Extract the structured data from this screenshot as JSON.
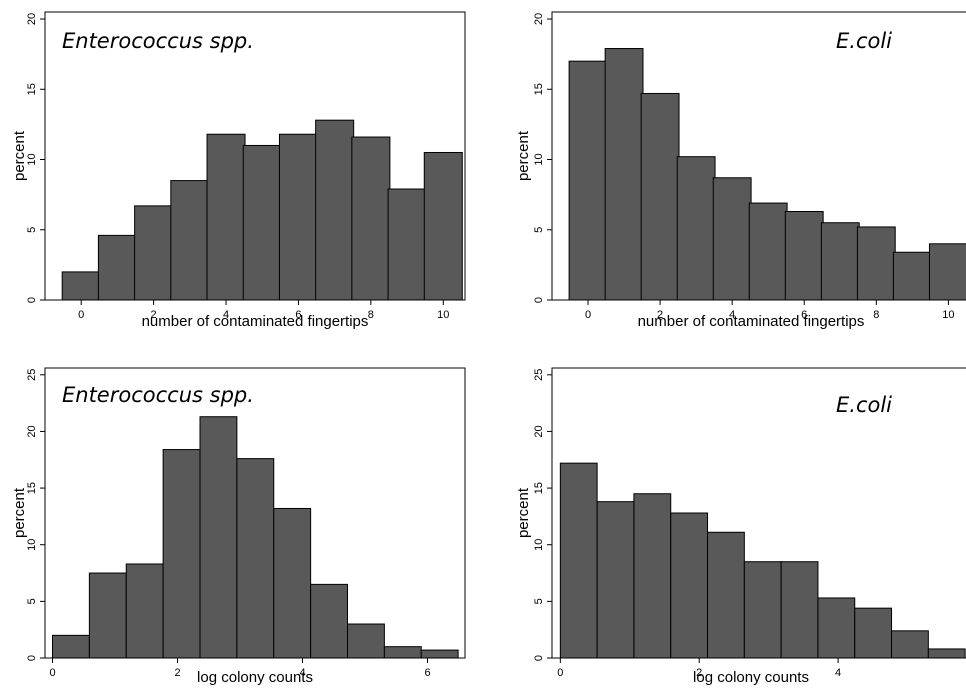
{
  "figure": {
    "colors": {
      "bar_fill": "#595959",
      "bar_edge": "#000000",
      "background": "#ffffff"
    }
  },
  "chart_data": [
    {
      "id": "entero-fingertips",
      "type": "bar",
      "annotation": "Enterococcus spp.",
      "xlabel": "number of contaminated fingertips",
      "ylabel": "percent",
      "x_ticks": [
        0,
        2,
        4,
        6,
        8,
        10
      ],
      "y_ticks": [
        0,
        5,
        10,
        15,
        20
      ],
      "xlim": [
        -1.0,
        10.6
      ],
      "ylim": [
        0,
        20.5
      ],
      "bin_width": 1.05,
      "bins_x": [
        0,
        1,
        2,
        3,
        4,
        5,
        6,
        7,
        8,
        9,
        10
      ],
      "values": [
        2.0,
        4.6,
        6.7,
        8.5,
        11.8,
        11.0,
        11.8,
        12.8,
        11.6,
        7.9,
        10.5
      ],
      "grid": false
    },
    {
      "id": "ecoli-fingertips",
      "type": "bar",
      "annotation": "E.coli",
      "xlabel": "number of contaminated fingertips",
      "ylabel": "percent",
      "x_ticks": [
        0,
        2,
        4,
        6,
        8,
        10
      ],
      "y_ticks": [
        0,
        5,
        10,
        15,
        20
      ],
      "xlim": [
        -1.0,
        10.6
      ],
      "ylim": [
        0,
        20.5
      ],
      "bin_width": 1.05,
      "bins_x": [
        0,
        1,
        2,
        3,
        4,
        5,
        6,
        7,
        8,
        9,
        10
      ],
      "values": [
        17.0,
        17.9,
        14.7,
        10.2,
        8.7,
        6.9,
        6.3,
        5.5,
        5.2,
        3.4,
        4.0
      ],
      "grid": false
    },
    {
      "id": "entero-logcounts",
      "type": "bar",
      "annotation": "Enterococcus spp.",
      "xlabel": "log colony counts",
      "ylabel": "percent",
      "x_ticks": [
        0,
        2,
        4,
        6
      ],
      "y_ticks": [
        0,
        5,
        10,
        15,
        20,
        25
      ],
      "xlim": [
        -0.12,
        6.6
      ],
      "ylim": [
        0,
        25.6
      ],
      "bin_width": 0.59,
      "bins_x": [
        0.0,
        0.59,
        1.18,
        1.77,
        2.36,
        2.95,
        3.54,
        4.13,
        4.72,
        5.31,
        5.9
      ],
      "values": [
        2.0,
        7.5,
        8.3,
        18.4,
        21.3,
        17.6,
        13.2,
        6.5,
        3.0,
        1.0,
        0.7
      ],
      "grid": false
    },
    {
      "id": "ecoli-logcounts",
      "type": "bar",
      "annotation": "E.coli",
      "xlabel": "log colony counts",
      "ylabel": "percent",
      "x_ticks": [
        0,
        2,
        4
      ],
      "y_ticks": [
        0,
        5,
        10,
        15,
        20,
        25
      ],
      "xlim": [
        -0.12,
        5.9
      ],
      "ylim": [
        0,
        25.6
      ],
      "bin_width": 0.53,
      "bins_x": [
        0.0,
        0.53,
        1.06,
        1.59,
        2.12,
        2.65,
        3.18,
        3.71,
        4.24,
        4.77,
        5.3
      ],
      "values": [
        17.2,
        13.8,
        14.5,
        12.8,
        11.1,
        8.5,
        8.5,
        5.3,
        4.4,
        2.4,
        0.8
      ],
      "grid": false
    }
  ]
}
